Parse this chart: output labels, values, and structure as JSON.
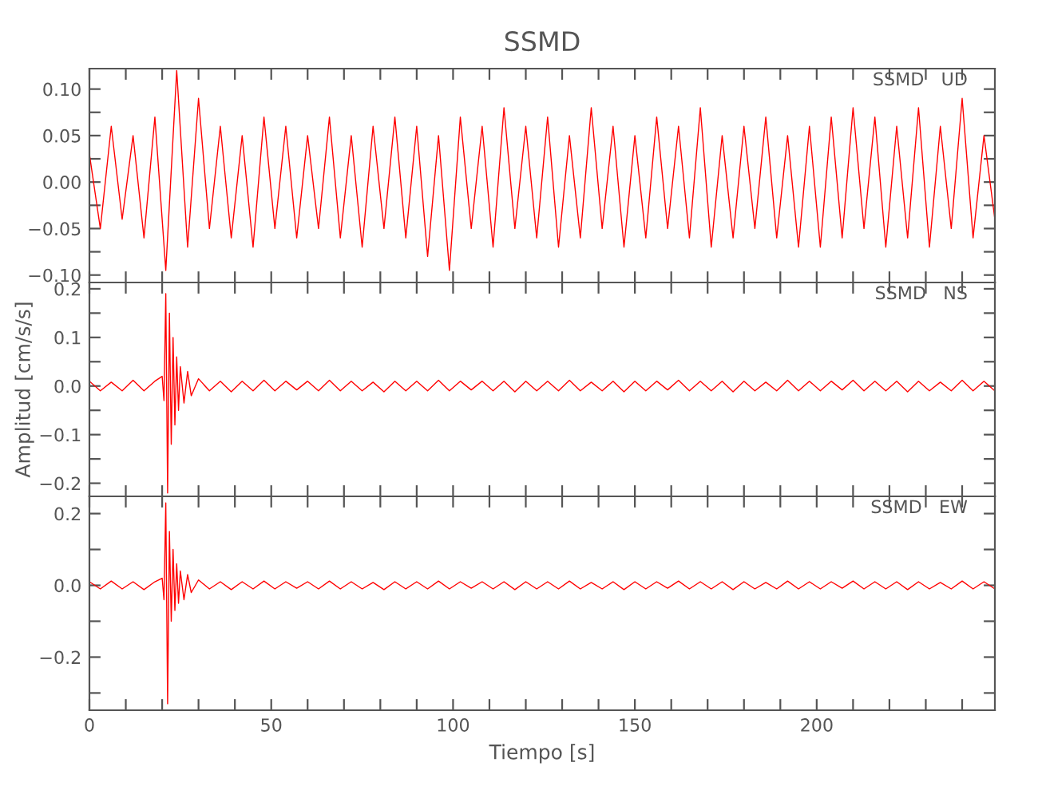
{
  "chart_data": [
    {
      "type": "line",
      "title": "SSMD",
      "annotations": [
        "SSMD   UD"
      ],
      "tick_labels": "y",
      "grid": false,
      "legend": false,
      "xlim": [
        0,
        249
      ],
      "ylim": [
        -0.108,
        0.122
      ],
      "xticks": [
        {
          "value": 0,
          "label": null
        },
        {
          "value": 10,
          "label": null
        },
        {
          "value": 20,
          "label": null
        },
        {
          "value": 30,
          "label": null
        },
        {
          "value": 40,
          "label": null
        },
        {
          "value": 50,
          "label": null
        },
        {
          "value": 60,
          "label": null
        },
        {
          "value": 70,
          "label": null
        },
        {
          "value": 80,
          "label": null
        },
        {
          "value": 90,
          "label": null
        },
        {
          "value": 100,
          "label": null
        },
        {
          "value": 110,
          "label": null
        },
        {
          "value": 120,
          "label": null
        },
        {
          "value": 130,
          "label": null
        },
        {
          "value": 140,
          "label": null
        },
        {
          "value": 150,
          "label": null
        },
        {
          "value": 160,
          "label": null
        },
        {
          "value": 170,
          "label": null
        },
        {
          "value": 180,
          "label": null
        },
        {
          "value": 190,
          "label": null
        },
        {
          "value": 200,
          "label": null
        },
        {
          "value": 210,
          "label": null
        },
        {
          "value": 220,
          "label": null
        },
        {
          "value": 230,
          "label": null
        },
        {
          "value": 240,
          "label": null
        }
      ],
      "yticks": [
        {
          "value": -0.1,
          "label": "−0.10"
        },
        {
          "value": -0.075,
          "label": null
        },
        {
          "value": -0.05,
          "label": "−0.05"
        },
        {
          "value": -0.025,
          "label": null
        },
        {
          "value": 0,
          "label": "0.00"
        },
        {
          "value": 0.025,
          "label": null
        },
        {
          "value": 0.05,
          "label": "0.05"
        },
        {
          "value": 0.075,
          "label": null
        },
        {
          "value": 0.1,
          "label": "0.10"
        }
      ],
      "series": [
        {
          "color": "#ff0000",
          "x": [
            0,
            3,
            6,
            9,
            12,
            15,
            18,
            21,
            24,
            27,
            30,
            33,
            36,
            39,
            42,
            45,
            48,
            51,
            54,
            57,
            60,
            63,
            66,
            69,
            72,
            75,
            78,
            81,
            84,
            87,
            90,
            93,
            96,
            99,
            102,
            105,
            108,
            111,
            114,
            117,
            120,
            123,
            126,
            129,
            132,
            135,
            138,
            141,
            144,
            147,
            150,
            153,
            156,
            159,
            162,
            165,
            168,
            171,
            174,
            177,
            180,
            183,
            186,
            189,
            192,
            195,
            198,
            201,
            204,
            207,
            210,
            213,
            216,
            219,
            222,
            225,
            228,
            231,
            234,
            237,
            240,
            243,
            246,
            249
          ],
          "values": [
            0.03,
            -0.05,
            0.06,
            -0.04,
            0.05,
            -0.06,
            0.07,
            -0.095,
            0.12,
            -0.07,
            0.09,
            -0.05,
            0.06,
            -0.06,
            0.05,
            -0.07,
            0.07,
            -0.05,
            0.06,
            -0.06,
            0.05,
            -0.05,
            0.07,
            -0.06,
            0.05,
            -0.07,
            0.06,
            -0.05,
            0.07,
            -0.06,
            0.06,
            -0.08,
            0.05,
            -0.095,
            0.07,
            -0.05,
            0.06,
            -0.07,
            0.08,
            -0.05,
            0.06,
            -0.06,
            0.07,
            -0.07,
            0.05,
            -0.06,
            0.08,
            -0.05,
            0.06,
            -0.07,
            0.05,
            -0.06,
            0.07,
            -0.05,
            0.06,
            -0.06,
            0.08,
            -0.07,
            0.05,
            -0.06,
            0.06,
            -0.05,
            0.07,
            -0.06,
            0.05,
            -0.07,
            0.06,
            -0.07,
            0.07,
            -0.06,
            0.08,
            -0.05,
            0.07,
            -0.07,
            0.06,
            -0.06,
            0.08,
            -0.07,
            0.06,
            -0.05,
            0.09,
            -0.06,
            0.05,
            -0.04
          ]
        }
      ]
    },
    {
      "type": "line",
      "ylabel": "Amplitud [cm/s/s]",
      "annotations": [
        "SSMD   NS"
      ],
      "tick_labels": "y",
      "grid": false,
      "legend": false,
      "xlim": [
        0,
        249
      ],
      "ylim": [
        -0.227,
        0.213
      ],
      "xticks": [
        {
          "value": 0,
          "label": null
        },
        {
          "value": 10,
          "label": null
        },
        {
          "value": 20,
          "label": null
        },
        {
          "value": 30,
          "label": null
        },
        {
          "value": 40,
          "label": null
        },
        {
          "value": 50,
          "label": null
        },
        {
          "value": 60,
          "label": null
        },
        {
          "value": 70,
          "label": null
        },
        {
          "value": 80,
          "label": null
        },
        {
          "value": 90,
          "label": null
        },
        {
          "value": 100,
          "label": null
        },
        {
          "value": 110,
          "label": null
        },
        {
          "value": 120,
          "label": null
        },
        {
          "value": 130,
          "label": null
        },
        {
          "value": 140,
          "label": null
        },
        {
          "value": 150,
          "label": null
        },
        {
          "value": 160,
          "label": null
        },
        {
          "value": 170,
          "label": null
        },
        {
          "value": 180,
          "label": null
        },
        {
          "value": 190,
          "label": null
        },
        {
          "value": 200,
          "label": null
        },
        {
          "value": 210,
          "label": null
        },
        {
          "value": 220,
          "label": null
        },
        {
          "value": 230,
          "label": null
        },
        {
          "value": 240,
          "label": null
        }
      ],
      "yticks": [
        {
          "value": -0.2,
          "label": "−0.2"
        },
        {
          "value": -0.15,
          "label": null
        },
        {
          "value": -0.1,
          "label": "−0.1"
        },
        {
          "value": -0.05,
          "label": null
        },
        {
          "value": 0,
          "label": "0.0"
        },
        {
          "value": 0.05,
          "label": null
        },
        {
          "value": 0.1,
          "label": "0.1"
        },
        {
          "value": 0.15,
          "label": null
        },
        {
          "value": 0.2,
          "label": "0.2"
        }
      ],
      "series": [
        {
          "color": "#ff0000",
          "x": [
            0,
            3,
            6,
            9,
            12,
            15,
            18,
            20,
            20.5,
            21,
            21.5,
            22,
            22.5,
            23,
            23.5,
            24,
            24.5,
            25,
            26,
            27,
            28,
            30,
            33,
            36,
            39,
            42,
            45,
            48,
            51,
            54,
            57,
            60,
            63,
            66,
            69,
            72,
            75,
            78,
            81,
            84,
            87,
            90,
            93,
            96,
            99,
            102,
            105,
            108,
            111,
            114,
            117,
            120,
            123,
            126,
            129,
            132,
            135,
            138,
            141,
            144,
            147,
            150,
            153,
            156,
            159,
            162,
            165,
            168,
            171,
            174,
            177,
            180,
            183,
            186,
            189,
            192,
            195,
            198,
            201,
            204,
            207,
            210,
            213,
            216,
            219,
            222,
            225,
            228,
            231,
            234,
            237,
            240,
            243,
            246,
            249
          ],
          "values": [
            0.01,
            -0.01,
            0.008,
            -0.01,
            0.012,
            -0.01,
            0.01,
            0.02,
            -0.03,
            0.19,
            -0.22,
            0.15,
            -0.12,
            0.1,
            -0.08,
            0.06,
            -0.05,
            0.04,
            -0.035,
            0.03,
            -0.02,
            0.015,
            -0.01,
            0.01,
            -0.012,
            0.01,
            -0.01,
            0.012,
            -0.01,
            0.01,
            -0.008,
            0.01,
            -0.01,
            0.012,
            -0.01,
            0.01,
            -0.01,
            0.008,
            -0.012,
            0.01,
            -0.01,
            0.01,
            -0.01,
            0.012,
            -0.01,
            0.01,
            -0.008,
            0.01,
            -0.01,
            0.01,
            -0.012,
            0.01,
            -0.01,
            0.01,
            -0.01,
            0.012,
            -0.01,
            0.008,
            -0.01,
            0.01,
            -0.012,
            0.01,
            -0.01,
            0.01,
            -0.008,
            0.012,
            -0.01,
            0.01,
            -0.01,
            0.01,
            -0.012,
            0.01,
            -0.01,
            0.008,
            -0.01,
            0.012,
            -0.01,
            0.01,
            -0.01,
            0.01,
            -0.008,
            0.012,
            -0.01,
            0.01,
            -0.01,
            0.01,
            -0.012,
            0.01,
            -0.01,
            0.008,
            -0.01,
            0.012,
            -0.01,
            0.01,
            -0.01
          ]
        }
      ]
    },
    {
      "type": "line",
      "xlabel": "Tiempo [s]",
      "annotations": [
        "SSMD   EW"
      ],
      "grid": false,
      "legend": false,
      "xlim": [
        0,
        249
      ],
      "ylim": [
        -0.348,
        0.248
      ],
      "xticks": [
        0,
        {
          "value": 10,
          "label": null
        },
        {
          "value": 20,
          "label": null
        },
        {
          "value": 30,
          "label": null
        },
        {
          "value": 40,
          "label": null
        },
        50,
        {
          "value": 60,
          "label": null
        },
        {
          "value": 70,
          "label": null
        },
        {
          "value": 80,
          "label": null
        },
        {
          "value": 90,
          "label": null
        },
        100,
        {
          "value": 110,
          "label": null
        },
        {
          "value": 120,
          "label": null
        },
        {
          "value": 130,
          "label": null
        },
        {
          "value": 140,
          "label": null
        },
        150,
        {
          "value": 160,
          "label": null
        },
        {
          "value": 170,
          "label": null
        },
        {
          "value": 180,
          "label": null
        },
        {
          "value": 190,
          "label": null
        },
        200,
        {
          "value": 210,
          "label": null
        },
        {
          "value": 220,
          "label": null
        },
        {
          "value": 230,
          "label": null
        },
        {
          "value": 240,
          "label": null
        }
      ],
      "yticks": [
        {
          "value": -0.3,
          "label": null
        },
        {
          "value": -0.2,
          "label": "−0.2"
        },
        {
          "value": -0.1,
          "label": null
        },
        {
          "value": 0,
          "label": "0.0"
        },
        {
          "value": 0.1,
          "label": null
        },
        {
          "value": 0.2,
          "label": "0.2"
        }
      ],
      "series": [
        {
          "color": "#ff0000",
          "x": [
            0,
            3,
            6,
            9,
            12,
            15,
            18,
            20,
            20.5,
            21,
            21.5,
            22,
            22.5,
            23,
            23.5,
            24,
            24.5,
            25,
            26,
            27,
            28,
            30,
            33,
            36,
            39,
            42,
            45,
            48,
            51,
            54,
            57,
            60,
            63,
            66,
            69,
            72,
            75,
            78,
            81,
            84,
            87,
            90,
            93,
            96,
            99,
            102,
            105,
            108,
            111,
            114,
            117,
            120,
            123,
            126,
            129,
            132,
            135,
            138,
            141,
            144,
            147,
            150,
            153,
            156,
            159,
            162,
            165,
            168,
            171,
            174,
            177,
            180,
            183,
            186,
            189,
            192,
            195,
            198,
            201,
            204,
            207,
            210,
            213,
            216,
            219,
            222,
            225,
            228,
            231,
            234,
            237,
            240,
            243,
            246,
            249
          ],
          "values": [
            0.01,
            -0.01,
            0.012,
            -0.01,
            0.01,
            -0.012,
            0.01,
            0.02,
            -0.04,
            0.23,
            -0.33,
            0.15,
            -0.1,
            0.1,
            -0.07,
            0.06,
            -0.05,
            0.04,
            -0.04,
            0.03,
            -0.02,
            0.015,
            -0.01,
            0.01,
            -0.012,
            0.01,
            -0.01,
            0.012,
            -0.01,
            0.01,
            -0.008,
            0.01,
            -0.01,
            0.012,
            -0.01,
            0.01,
            -0.01,
            0.008,
            -0.012,
            0.01,
            -0.01,
            0.01,
            -0.01,
            0.012,
            -0.01,
            0.01,
            -0.008,
            0.01,
            -0.01,
            0.01,
            -0.012,
            0.01,
            -0.01,
            0.01,
            -0.01,
            0.012,
            -0.01,
            0.008,
            -0.01,
            0.01,
            -0.012,
            0.01,
            -0.01,
            0.01,
            -0.008,
            0.012,
            -0.01,
            0.01,
            -0.01,
            0.01,
            -0.012,
            0.01,
            -0.01,
            0.008,
            -0.01,
            0.012,
            -0.01,
            0.01,
            -0.01,
            0.01,
            -0.008,
            0.012,
            -0.01,
            0.01,
            -0.01,
            0.01,
            -0.012,
            0.01,
            -0.01,
            0.008,
            -0.01,
            0.012,
            -0.01,
            0.01,
            -0.01
          ]
        }
      ]
    }
  ]
}
